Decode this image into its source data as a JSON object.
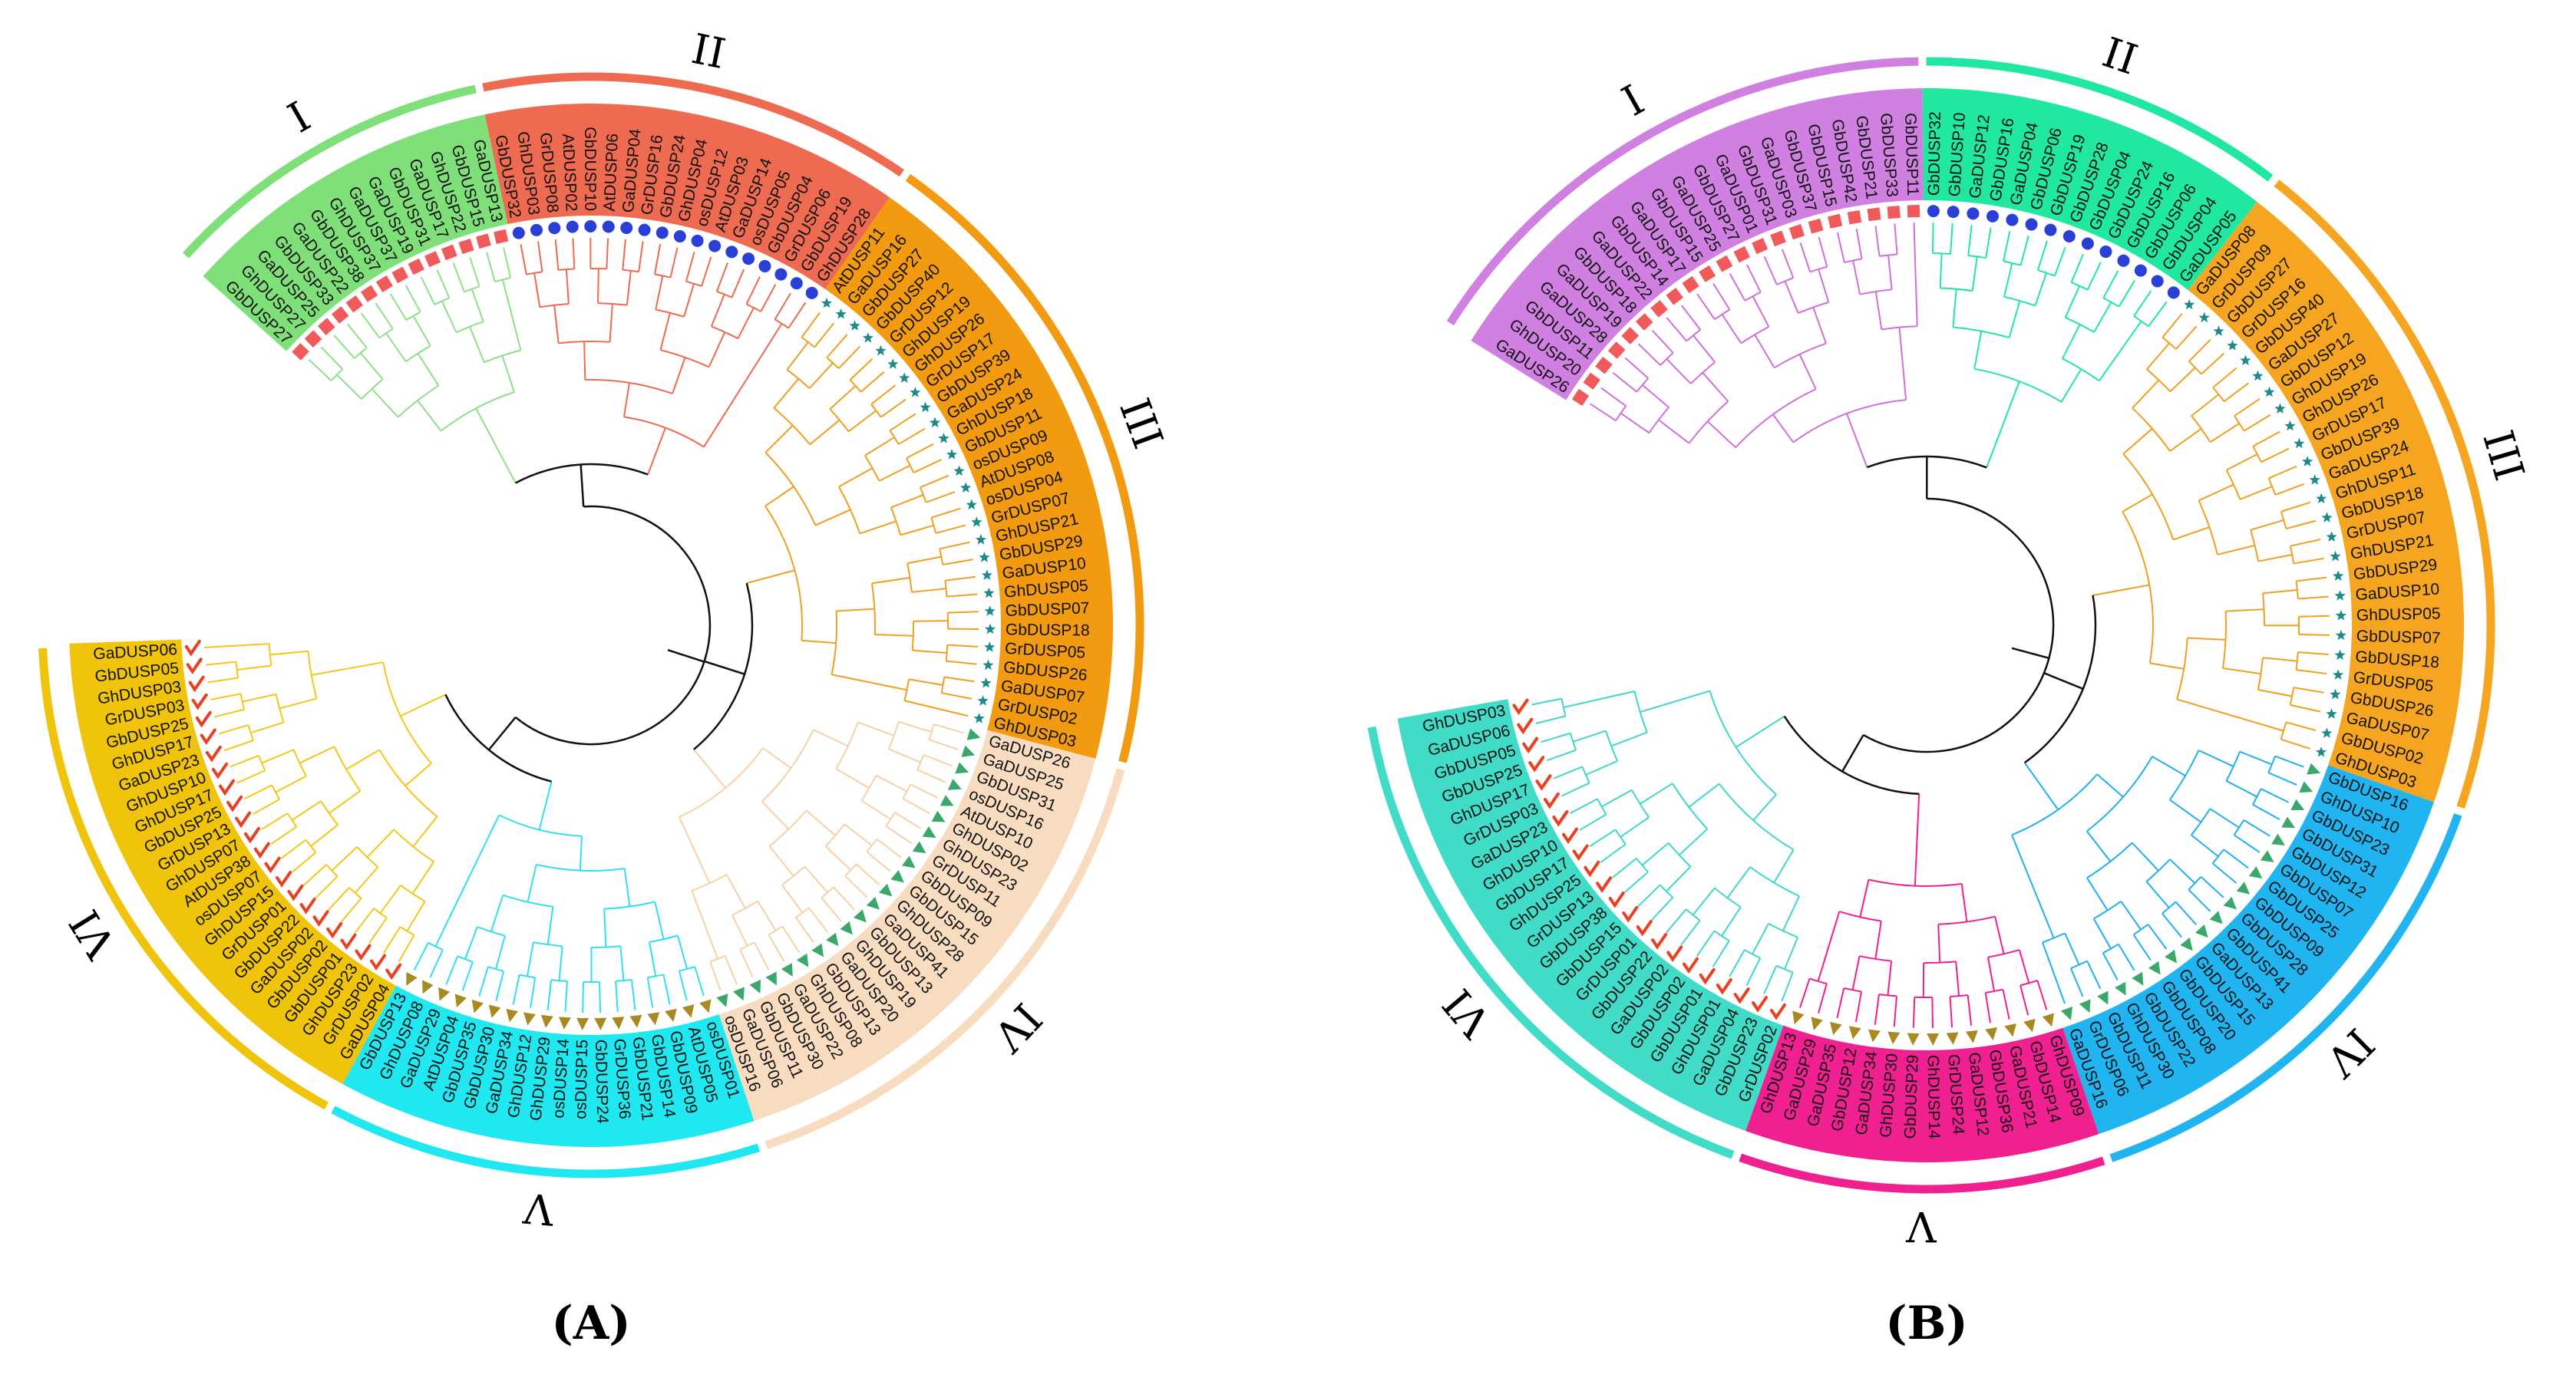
{
  "panels": [
    {
      "id": "A",
      "label": "(A)",
      "clades": [
        {
          "numeral": "I",
          "color": "#8fe08a",
          "band": "#7fe07a",
          "marker": "square",
          "marker_color": "#f05a5a",
          "leaves": [
            "GbDUSP27",
            "GhDUSP27",
            "GaDUSP25",
            "GbDUSP33",
            "GaDUSP22",
            "GbDUSP38",
            "GhDUSP37",
            "GaDUSP37",
            "GaDUSP19",
            "GbDUSP31",
            "GaDUSP17",
            "GhDUSP22",
            "GbDUSP15",
            "GaDUSP13"
          ]
        },
        {
          "numeral": "II",
          "color": "#ee6a50",
          "band": "#ee6a50",
          "marker": "circle",
          "marker_color": "#2a3ed8",
          "leaves": [
            "GbDUSP32",
            "GhDUSP03",
            "GrDUSP08",
            "AtDUSP02",
            "GbDUSP10",
            "AtDUSP06",
            "GaDUSP04",
            "GrDUSP16",
            "GbDUSP24",
            "GhDUSP04",
            "osDUSP12",
            "AtDUSP03",
            "GaDUSP14",
            "osDUSP05",
            "GbDUSP04",
            "GrDUSP06",
            "GbDUSP19",
            "GhDUSP28"
          ]
        },
        {
          "numeral": "III",
          "color": "#f0a020",
          "band": "#f29a10",
          "marker": "star",
          "marker_color": "#1f8a8a",
          "leaves": [
            "AtDUSP11",
            "GaDUSP16",
            "GbDUSP27",
            "GbDUSP40",
            "GrDUSP12",
            "GhDUSP19",
            "GhDUSP26",
            "GrDUSP17",
            "GbDUSP39",
            "GaDUSP24",
            "GhDUSP18",
            "GbDUSP11",
            "osDUSP09",
            "AtDUSP08",
            "osDUSP04",
            "GrDUSP07",
            "GhDUSP21",
            "GbDUSP29",
            "GaDUSP10",
            "GhDUSP05",
            "GbDUSP07",
            "GbDUSP18",
            "GrDUSP05",
            "GbDUSP26",
            "GaDUSP07",
            "GrDUSP02",
            "GhDUSP03"
          ]
        },
        {
          "numeral": "IV",
          "color": "#f5d2a8",
          "band": "#f8dcc0",
          "marker": "triangle",
          "marker_color": "#3aa86a",
          "leaves": [
            "GaDUSP26",
            "GaDUSP25",
            "GbDUSP31",
            "osDUSP16",
            "AtDUSP10",
            "GhDUSP02",
            "GhDUSP23",
            "GrDUSP11",
            "GbDUSP09",
            "GbDUSP15",
            "GhDUSP28",
            "GaDUSP41",
            "GbDUSP13",
            "GhDUSP19",
            "GaDUSP20",
            "GbDUSP13",
            "GhDUSP08",
            "GaDUSP22",
            "GbDUSP30",
            "GbDUSP11",
            "GaDUSP06",
            "osDUSP16"
          ]
        },
        {
          "numeral": "V",
          "color": "#30e0f0",
          "band": "#20e8f0",
          "marker": "triangle",
          "marker_color": "#a88a20",
          "leaves": [
            "osDUSP01",
            "AtDUSP05",
            "GbDUSP09",
            "GbDUSP14",
            "GbDUSP21",
            "GrDUSP36",
            "GbDUSP24",
            "osDUSP15",
            "osDUSP14",
            "GhDUSP29",
            "GhDUSP12",
            "GaDUSP34",
            "GbDUSP30",
            "GbDUSP35",
            "AtDUSP04",
            "GaDUSP29",
            "GhDUSP08",
            "GbDUSP13"
          ]
        },
        {
          "numeral": "VI",
          "color": "#f2c81a",
          "band": "#f0c40a",
          "marker": "check",
          "marker_color": "#e84020",
          "leaves": [
            "GaDUSP04",
            "GrDUSP02",
            "GhDUSP23",
            "GbDUSP01",
            "GbDUSP02",
            "GaDUSP02",
            "GbDUSP22",
            "GrDUSP01",
            "GhDUSP15",
            "osDUSP07",
            "AtDUSP38",
            "GhDUSP07",
            "GrDUSP13",
            "GbDUSP25",
            "GhDUSP17",
            "GhDUSP10",
            "GaDUSP23",
            "GhDUSP17",
            "GbDUSP25",
            "GrDUSP03",
            "GhDUSP03",
            "GbDUSP05",
            "GaDUSP06"
          ]
        }
      ]
    },
    {
      "id": "B",
      "label": "(B)",
      "clades": [
        {
          "numeral": "I",
          "color": "#d070d8",
          "band": "#d080e0",
          "marker": "square",
          "marker_color": "#f05a5a",
          "leaves": [
            "GaDUSP26",
            "GhDUSP20",
            "GbDUSP11",
            "GaDUSP28",
            "GaDUSP19",
            "GbDUSP18",
            "GaDUSP22",
            "GbDUSP14",
            "GaDUSP17",
            "GbDUSP15",
            "GaDUSP25",
            "GbDUSP27",
            "GaDUSP01",
            "GbDUSP31",
            "GaDUSP03",
            "GbDUSP37",
            "GbDUSP15",
            "GbDUSP42",
            "GbDUSP21",
            "GbDUSP33",
            "GbDUSP11"
          ]
        },
        {
          "numeral": "II",
          "color": "#20e8a0",
          "band": "#20e8a0",
          "marker": "circle",
          "marker_color": "#2a3ed8",
          "leaves": [
            "GbDUSP32",
            "GbDUSP10",
            "GaDUSP12",
            "GbDUSP16",
            "GaDUSP04",
            "GbDUSP06",
            "GbDUSP19",
            "GbDUSP28",
            "GbDUSP04",
            "GbDUSP24",
            "GbDUSP16",
            "GbDUSP06",
            "GbDUSP04",
            "GaDUSP05"
          ]
        },
        {
          "numeral": "III",
          "color": "#f0a020",
          "band": "#f5a520",
          "marker": "star",
          "marker_color": "#1f8a8a",
          "leaves": [
            "GaDUSP08",
            "GrDUSP09",
            "GbDUSP27",
            "GrDUSP16",
            "GbDUSP40",
            "GaDUSP27",
            "GbDUSP12",
            "GhDUSP19",
            "GhDUSP26",
            "GrDUSP17",
            "GbDUSP39",
            "GaDUSP24",
            "GhDUSP11",
            "GbDUSP18",
            "GrDUSP07",
            "GhDUSP21",
            "GbDUSP29",
            "GaDUSP10",
            "GhDUSP05",
            "GbDUSP07",
            "GbDUSP18",
            "GrDUSP05",
            "GbDUSP26",
            "GaDUSP07",
            "GbDUSP02",
            "GhDUSP03"
          ]
        },
        {
          "numeral": "IV",
          "color": "#22b0f0",
          "band": "#20b4f0",
          "marker": "triangle",
          "marker_color": "#3aa86a",
          "leaves": [
            "GbDUSP16",
            "GhDUSP10",
            "GbDUSP23",
            "GbDUSP31",
            "GbDUSP12",
            "GbDUSP07",
            "GbDUSP25",
            "GbDUSP09",
            "GbDUSP28",
            "GbDUSP41",
            "GaDUSP13",
            "GbDUSP15",
            "GbDUSP20",
            "GbDUSP08",
            "GbDUSP22",
            "GhDUSP30",
            "GbDUSP11",
            "GrDUSP06",
            "GaDUSP16"
          ]
        },
        {
          "numeral": "V",
          "color": "#f02090",
          "band": "#f02090",
          "marker": "triangle",
          "marker_color": "#a88a20",
          "leaves": [
            "GhDUSP09",
            "GbDUSP14",
            "GaDUSP21",
            "GbDUSP36",
            "GaDUSP12",
            "GrDUSP24",
            "GhDUSP14",
            "GbDUSP29",
            "GhDUSP30",
            "GaDUSP34",
            "GbDUSP12",
            "GaDUSP35",
            "GaDUSP29",
            "GhDUSP13"
          ]
        },
        {
          "numeral": "VI",
          "color": "#40d8c8",
          "band": "#40dcc8",
          "marker": "check",
          "marker_color": "#e84020",
          "leaves": [
            "GrDUSP02",
            "GbDUSP23",
            "GaDUSP04",
            "GhDUSP01",
            "GbDUSP01",
            "GbDUSP02",
            "GaDUSP02",
            "GbDUSP22",
            "GrDUSP01",
            "GbDUSP15",
            "GbDUSP38",
            "GrDUSP13",
            "GhDUSP25",
            "GbDUSP17",
            "GhDUSP10",
            "GaDUSP23",
            "GrDUSP03",
            "GhDUSP17",
            "GbDUSP25",
            "GbDUSP05",
            "GaDUSP06",
            "GhDUSP03"
          ]
        }
      ]
    }
  ]
}
